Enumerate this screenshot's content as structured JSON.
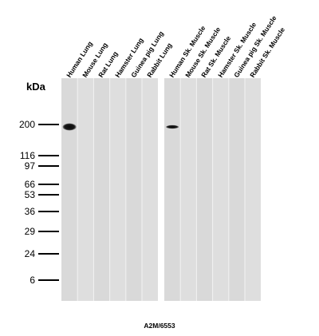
{
  "y_axis": {
    "unit": "kDa",
    "markers": [
      {
        "label": "200",
        "kda": 200
      },
      {
        "label": "116",
        "kda": 116
      },
      {
        "label": "97",
        "kda": 97
      },
      {
        "label": "66",
        "kda": 66
      },
      {
        "label": "53",
        "kda": 53
      },
      {
        "label": "36",
        "kda": 36
      },
      {
        "label": "29",
        "kda": 29
      },
      {
        "label": "24",
        "kda": 24
      },
      {
        "label": "6",
        "kda": 6
      }
    ]
  },
  "panels": [
    {
      "lanes": [
        "Human Lung",
        "Mouse Lung",
        "Rat Lung",
        "Hamster Lung",
        "Guinea pig Lung",
        "Rabbit Lung"
      ]
    },
    {
      "lanes": [
        "Human Sk. Muscle",
        "Mouse Sk. Muscle",
        "Rat Sk. Muscle",
        "Hamster Sk. Muscle",
        "Guinea pig Sk. Muscle",
        "Rabbit Sk. Muscle"
      ]
    }
  ],
  "bands": [
    {
      "panel": 0,
      "lane": 0,
      "kda": 200,
      "intensity": "strong"
    },
    {
      "panel": 1,
      "lane": 0,
      "kda": 200,
      "intensity": "medium"
    }
  ],
  "footer": {
    "antibody": "A2M/6553"
  }
}
